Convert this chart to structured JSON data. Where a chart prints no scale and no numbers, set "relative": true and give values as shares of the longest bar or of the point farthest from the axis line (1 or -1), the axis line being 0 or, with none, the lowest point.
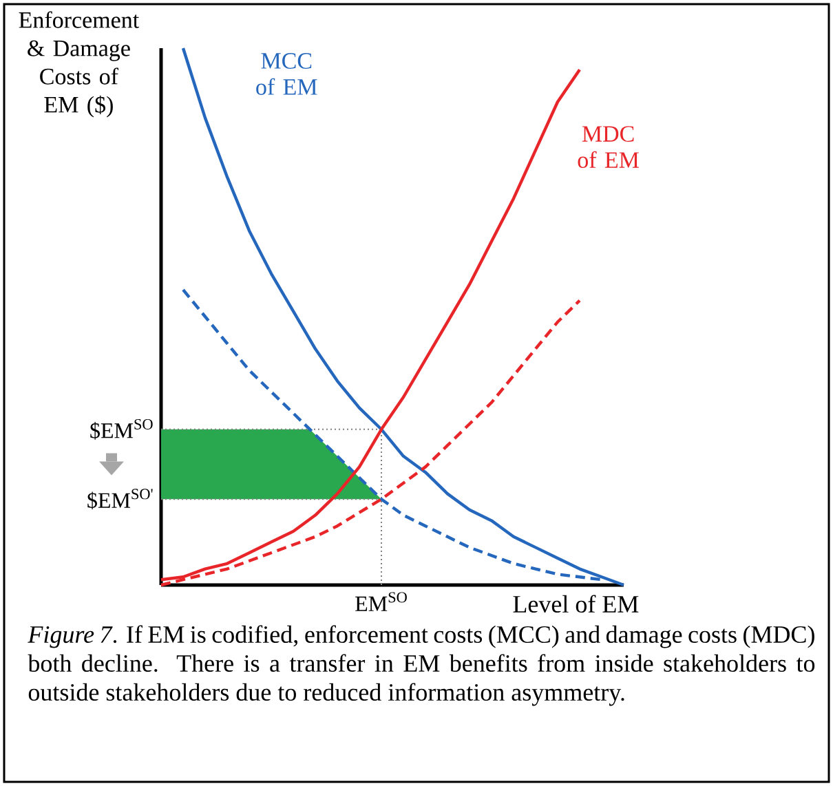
{
  "chart_data": {
    "type": "line",
    "relative": true,
    "ylabel": "Enforcement & Damage Costs of EM ($)",
    "xlabel": "Level of EM",
    "categories": [
      null,
      null,
      null,
      null,
      null,
      null,
      null,
      null,
      null,
      null,
      null,
      null,
      null,
      null,
      null,
      null,
      null,
      null,
      null,
      null,
      null,
      null
    ],
    "series": [
      {
        "name": "MCC of EM",
        "color": "#2467bd",
        "line_style": "solid",
        "values": [
          null,
          1.0,
          0.87,
          0.76,
          0.66,
          0.58,
          0.51,
          0.44,
          0.38,
          0.33,
          0.29,
          0.24,
          0.21,
          0.17,
          0.14,
          0.12,
          0.09,
          0.07,
          0.05,
          0.03,
          0.015,
          0
        ]
      },
      {
        "color": "#2467bd",
        "line_style": "dashed",
        "values": [
          null,
          0.55,
          0.5,
          0.45,
          0.4,
          0.36,
          0.32,
          0.28,
          0.24,
          0.2,
          0.16,
          0.13,
          0.11,
          0.09,
          0.07,
          0.055,
          0.04,
          0.03,
          0.02,
          0.015,
          0.01,
          null
        ]
      },
      {
        "name": "MDC of EM",
        "color": "#e8262a",
        "line_style": "solid",
        "values": [
          0.01,
          0.015,
          0.03,
          0.04,
          0.06,
          0.08,
          0.1,
          0.13,
          0.17,
          0.22,
          0.29,
          0.35,
          0.42,
          0.49,
          0.56,
          0.64,
          0.72,
          0.81,
          0.9,
          0.96,
          null,
          null
        ]
      },
      {
        "color": "#e8262a",
        "line_style": "dashed",
        "values": [
          0,
          0.01,
          0.02,
          0.03,
          0.045,
          0.06,
          0.075,
          0.09,
          0.11,
          0.135,
          0.16,
          0.19,
          0.22,
          0.26,
          0.3,
          0.34,
          0.39,
          0.44,
          0.49,
          0.53,
          null,
          null
        ]
      }
    ],
    "ref_lines": [
      {
        "axis": "y",
        "value": 0.29,
        "label": "$EM$^{SO}$",
        "color": "#808080",
        "line_style": "dotted"
      },
      {
        "axis": "y",
        "value": 0.16,
        "label": "$EM$^{SO'}$",
        "color": "#808080",
        "line_style": "dotted"
      }
    ],
    "bands": [
      {
        "axis": "y",
        "from": 0.16,
        "to": 0.29,
        "color": "#2aa84f"
      }
    ],
    "annotations": [
      "EM$^{SO}$",
      "*Figure 7*. If EM is codified, enforcement costs (MCC) and damage costs (MDC) both decline. There is a transfer in EM benefits from inside stakeholders to outside stakeholders due to reduced information asymmetry."
    ]
  }
}
